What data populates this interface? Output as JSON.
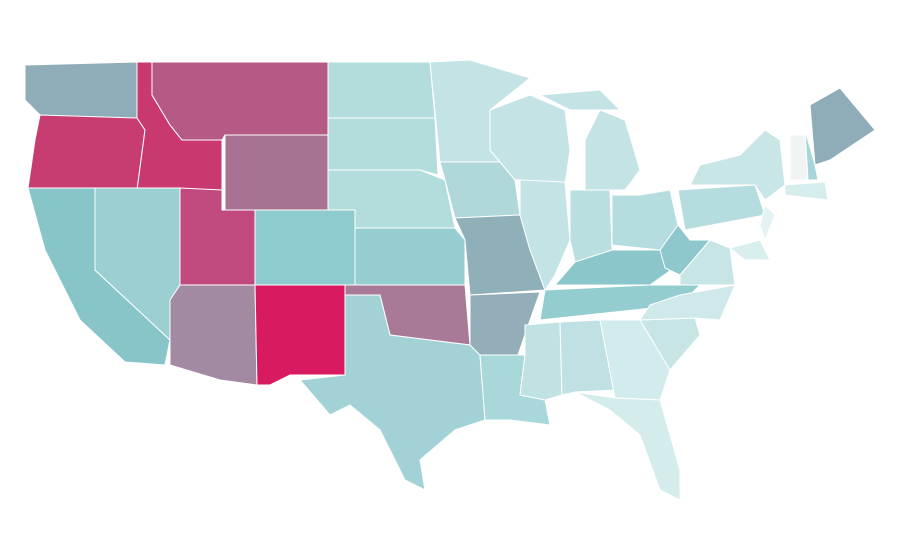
{
  "map": {
    "type": "choropleth",
    "border_color": "#ffffff",
    "regions": [
      {
        "color": "#8fadb8"
      },
      {
        "color": "#c73d72"
      },
      {
        "color": "#c9396f"
      },
      {
        "color": "#b45a85"
      },
      {
        "color": "#a87293"
      },
      {
        "color": "#88c5c9"
      },
      {
        "color": "#9ccfd1"
      },
      {
        "color": "#c04a7e"
      },
      {
        "color": "#8ecbce"
      },
      {
        "color": "#a38aa3"
      },
      {
        "color": "#d81b60"
      },
      {
        "color": "#b3dcdd"
      },
      {
        "color": "#b3dcdd"
      },
      {
        "color": "#b3dcdd"
      },
      {
        "color": "#95cdd0"
      },
      {
        "color": "#a87a98"
      },
      {
        "color": "#a2d2d5"
      },
      {
        "color": "#c4e3e5"
      },
      {
        "color": "#b0d8db"
      },
      {
        "color": "#8fafb9"
      },
      {
        "color": "#93aeb9"
      },
      {
        "color": "#a9d8da"
      },
      {
        "color": "#c4e3e5"
      },
      {
        "color": "#c4e3e5"
      },
      {
        "color": "#c4e3e5"
      },
      {
        "color": "#c4e3e5"
      },
      {
        "color": "#b9dfe0"
      },
      {
        "color": "#b5dcde"
      },
      {
        "color": "#8ac6ca"
      },
      {
        "color": "#94cdd0"
      },
      {
        "color": "#c0e2e3"
      },
      {
        "color": "#bfe1e3"
      },
      {
        "color": "#d2ebec"
      },
      {
        "color": "#d4ecec"
      },
      {
        "color": "#c8e5e6"
      },
      {
        "color": "#cfe8e9"
      },
      {
        "color": "#c8e5e6"
      },
      {
        "color": "#8fc8cc"
      },
      {
        "color": "#b5dcde"
      },
      {
        "color": "#c9e6e7"
      },
      {
        "color": "#f0f4f5"
      },
      {
        "color": "#a6d6d8"
      },
      {
        "color": "#8fadb8"
      },
      {
        "color": "#d5eded"
      },
      {
        "color": "#e5f2f3"
      },
      {
        "color": "#d8eeef"
      }
    ]
  }
}
